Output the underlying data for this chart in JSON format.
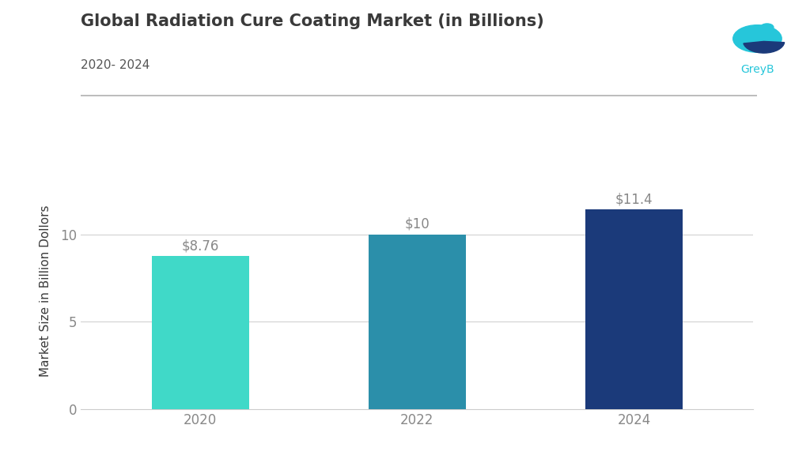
{
  "title": "Global Radiation Cure Coating Market (in Billions)",
  "subtitle": "2020- 2024",
  "categories": [
    "2020",
    "2022",
    "2024"
  ],
  "values": [
    8.76,
    10,
    11.4
  ],
  "bar_colors": [
    "#40D9C8",
    "#2B8FAA",
    "#1B3A7A"
  ],
  "bar_labels": [
    "$8.76",
    "$10",
    "$11.4"
  ],
  "ylabel": "Market Size in Billion Dollors",
  "ylim": [
    0,
    13.5
  ],
  "yticks": [
    0,
    5,
    10
  ],
  "background_color": "#ffffff",
  "grid_color": "#cccccc",
  "title_color": "#3a3a3a",
  "subtitle_color": "#555555",
  "bar_label_color": "#888888",
  "ylabel_color": "#3a3a3a",
  "tick_color": "#888888",
  "greyb_text_color": "#26c6da",
  "separator_color": "#b0b0b0",
  "title_fontsize": 15,
  "subtitle_fontsize": 11,
  "bar_label_fontsize": 12,
  "ylabel_fontsize": 11,
  "tick_fontsize": 12
}
